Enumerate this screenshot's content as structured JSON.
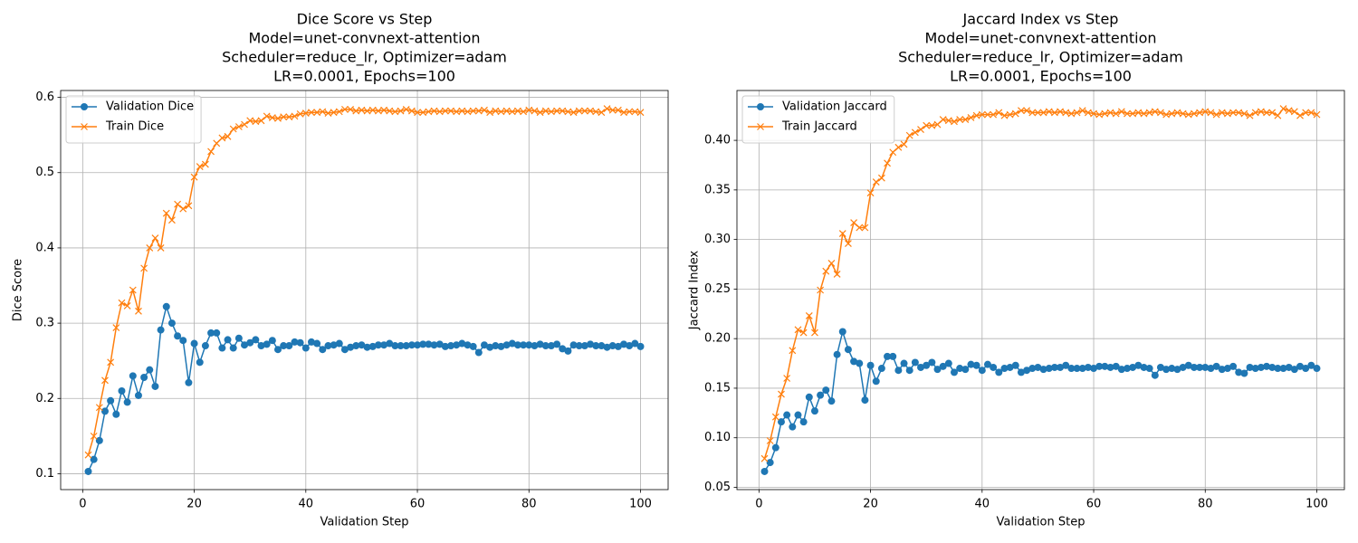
{
  "chart_data": [
    {
      "type": "line",
      "title": [
        "Dice Score vs Step",
        "Model=unet-convnext-attention",
        "Scheduler=reduce_lr, Optimizer=adam",
        "LR=0.0001, Epochs=100"
      ],
      "x_label": "Validation Step",
      "y_label": "Dice Score",
      "x": [
        1,
        2,
        3,
        4,
        5,
        6,
        7,
        8,
        9,
        10,
        11,
        12,
        13,
        14,
        15,
        16,
        17,
        18,
        19,
        20,
        21,
        22,
        23,
        24,
        25,
        26,
        27,
        28,
        29,
        30,
        31,
        32,
        33,
        34,
        35,
        36,
        37,
        38,
        39,
        40,
        41,
        42,
        43,
        44,
        45,
        46,
        47,
        48,
        49,
        50,
        51,
        52,
        53,
        54,
        55,
        56,
        57,
        58,
        59,
        60,
        61,
        62,
        63,
        64,
        65,
        66,
        67,
        68,
        69,
        70,
        71,
        72,
        73,
        74,
        75,
        76,
        77,
        78,
        79,
        80,
        81,
        82,
        83,
        84,
        85,
        86,
        87,
        88,
        89,
        90,
        91,
        92,
        93,
        94,
        95,
        96,
        97,
        98,
        99,
        100
      ],
      "series": [
        {
          "name": "Validation Dice",
          "color": "#1f77b4",
          "marker": "o",
          "values": [
            0.103,
            0.119,
            0.144,
            0.183,
            0.197,
            0.179,
            0.21,
            0.195,
            0.23,
            0.204,
            0.228,
            0.238,
            0.216,
            0.291,
            0.322,
            0.3,
            0.283,
            0.277,
            0.221,
            0.273,
            0.248,
            0.27,
            0.287,
            0.287,
            0.267,
            0.278,
            0.267,
            0.28,
            0.271,
            0.274,
            0.278,
            0.27,
            0.272,
            0.277,
            0.265,
            0.27,
            0.27,
            0.275,
            0.274,
            0.267,
            0.275,
            0.273,
            0.265,
            0.27,
            0.271,
            0.273,
            0.265,
            0.268,
            0.27,
            0.271,
            0.268,
            0.269,
            0.271,
            0.271,
            0.273,
            0.27,
            0.27,
            0.27,
            0.271,
            0.271,
            0.272,
            0.272,
            0.271,
            0.272,
            0.269,
            0.27,
            0.271,
            0.273,
            0.271,
            0.269,
            0.261,
            0.271,
            0.268,
            0.27,
            0.269,
            0.271,
            0.273,
            0.271,
            0.271,
            0.271,
            0.27,
            0.272,
            0.27,
            0.27,
            0.272,
            0.266,
            0.263,
            0.271,
            0.27,
            0.27,
            0.272,
            0.27,
            0.27,
            0.268,
            0.27,
            0.269,
            0.272,
            0.27,
            0.273,
            0.269
          ]
        },
        {
          "name": "Train Dice",
          "color": "#ff7f0e",
          "marker": "x",
          "values": [
            0.125,
            0.15,
            0.188,
            0.224,
            0.248,
            0.294,
            0.327,
            0.323,
            0.344,
            0.316,
            0.373,
            0.4,
            0.413,
            0.4,
            0.446,
            0.437,
            0.458,
            0.452,
            0.456,
            0.494,
            0.508,
            0.511,
            0.528,
            0.539,
            0.546,
            0.548,
            0.558,
            0.561,
            0.564,
            0.569,
            0.568,
            0.569,
            0.575,
            0.573,
            0.572,
            0.574,
            0.574,
            0.575,
            0.578,
            0.579,
            0.58,
            0.58,
            0.581,
            0.579,
            0.58,
            0.581,
            0.584,
            0.584,
            0.582,
            0.583,
            0.582,
            0.583,
            0.582,
            0.583,
            0.582,
            0.581,
            0.582,
            0.584,
            0.582,
            0.58,
            0.58,
            0.581,
            0.582,
            0.581,
            0.582,
            0.582,
            0.581,
            0.582,
            0.581,
            0.582,
            0.582,
            0.583,
            0.58,
            0.582,
            0.581,
            0.582,
            0.581,
            0.582,
            0.581,
            0.583,
            0.582,
            0.58,
            0.582,
            0.581,
            0.582,
            0.582,
            0.581,
            0.58,
            0.582,
            0.582,
            0.582,
            0.581,
            0.58,
            0.585,
            0.583,
            0.583,
            0.58,
            0.581,
            0.581,
            0.58
          ]
        }
      ],
      "xlim": [
        -3.95,
        104.95
      ],
      "xticks": [
        0,
        20,
        40,
        60,
        80,
        100
      ],
      "ylim": [
        0.0789,
        0.6091
      ],
      "yticks": [
        0.1,
        0.2,
        0.3,
        0.4,
        0.5,
        0.6
      ],
      "grid": true,
      "legend": "upper left"
    },
    {
      "type": "line",
      "title": [
        "Jaccard Index vs Step",
        "Model=unet-convnext-attention",
        "Scheduler=reduce_lr, Optimizer=adam",
        "LR=0.0001, Epochs=100"
      ],
      "x_label": "Validation Step",
      "y_label": "Jaccard Index",
      "x": [
        1,
        2,
        3,
        4,
        5,
        6,
        7,
        8,
        9,
        10,
        11,
        12,
        13,
        14,
        15,
        16,
        17,
        18,
        19,
        20,
        21,
        22,
        23,
        24,
        25,
        26,
        27,
        28,
        29,
        30,
        31,
        32,
        33,
        34,
        35,
        36,
        37,
        38,
        39,
        40,
        41,
        42,
        43,
        44,
        45,
        46,
        47,
        48,
        49,
        50,
        51,
        52,
        53,
        54,
        55,
        56,
        57,
        58,
        59,
        60,
        61,
        62,
        63,
        64,
        65,
        66,
        67,
        68,
        69,
        70,
        71,
        72,
        73,
        74,
        75,
        76,
        77,
        78,
        79,
        80,
        81,
        82,
        83,
        84,
        85,
        86,
        87,
        88,
        89,
        90,
        91,
        92,
        93,
        94,
        95,
        96,
        97,
        98,
        99,
        100
      ],
      "series": [
        {
          "name": "Validation Jaccard",
          "color": "#1f77b4",
          "marker": "o",
          "values": [
            0.066,
            0.075,
            0.09,
            0.116,
            0.123,
            0.111,
            0.123,
            0.116,
            0.141,
            0.127,
            0.143,
            0.148,
            0.137,
            0.184,
            0.207,
            0.189,
            0.177,
            0.175,
            0.138,
            0.173,
            0.157,
            0.17,
            0.182,
            0.182,
            0.168,
            0.175,
            0.168,
            0.176,
            0.171,
            0.173,
            0.176,
            0.169,
            0.172,
            0.175,
            0.166,
            0.17,
            0.169,
            0.174,
            0.173,
            0.168,
            0.174,
            0.171,
            0.166,
            0.17,
            0.171,
            0.173,
            0.166,
            0.168,
            0.17,
            0.171,
            0.169,
            0.17,
            0.171,
            0.171,
            0.173,
            0.17,
            0.17,
            0.17,
            0.171,
            0.17,
            0.172,
            0.172,
            0.171,
            0.172,
            0.169,
            0.17,
            0.171,
            0.173,
            0.171,
            0.17,
            0.163,
            0.171,
            0.169,
            0.17,
            0.169,
            0.171,
            0.173,
            0.171,
            0.171,
            0.171,
            0.17,
            0.172,
            0.169,
            0.17,
            0.172,
            0.166,
            0.165,
            0.171,
            0.17,
            0.171,
            0.172,
            0.171,
            0.17,
            0.17,
            0.171,
            0.169,
            0.172,
            0.17,
            0.173,
            0.17
          ]
        },
        {
          "name": "Train Jaccard",
          "color": "#ff7f0e",
          "marker": "x",
          "values": [
            0.079,
            0.097,
            0.121,
            0.144,
            0.16,
            0.188,
            0.209,
            0.206,
            0.223,
            0.206,
            0.249,
            0.268,
            0.276,
            0.265,
            0.306,
            0.296,
            0.317,
            0.312,
            0.312,
            0.347,
            0.358,
            0.362,
            0.377,
            0.388,
            0.393,
            0.396,
            0.405,
            0.408,
            0.411,
            0.415,
            0.415,
            0.416,
            0.421,
            0.42,
            0.419,
            0.421,
            0.421,
            0.423,
            0.425,
            0.426,
            0.426,
            0.426,
            0.428,
            0.425,
            0.426,
            0.427,
            0.43,
            0.43,
            0.428,
            0.428,
            0.428,
            0.429,
            0.428,
            0.429,
            0.428,
            0.427,
            0.428,
            0.43,
            0.428,
            0.427,
            0.426,
            0.427,
            0.428,
            0.427,
            0.429,
            0.427,
            0.427,
            0.428,
            0.427,
            0.428,
            0.429,
            0.428,
            0.426,
            0.427,
            0.428,
            0.427,
            0.426,
            0.427,
            0.428,
            0.429,
            0.428,
            0.426,
            0.428,
            0.427,
            0.428,
            0.428,
            0.427,
            0.425,
            0.428,
            0.429,
            0.428,
            0.428,
            0.425,
            0.432,
            0.43,
            0.429,
            0.425,
            0.428,
            0.428,
            0.426
          ]
        }
      ],
      "xlim": [
        -3.95,
        104.95
      ],
      "xticks": [
        0,
        20,
        40,
        60,
        80,
        100
      ],
      "ylim": [
        0.0477,
        0.4503
      ],
      "yticks": [
        0.05,
        {
          "value": 0.1,
          "label": "0.10"
        },
        0.15,
        {
          "value": 0.2,
          "label": "0.20"
        },
        0.25,
        {
          "value": 0.3,
          "label": "0.30"
        },
        0.35,
        {
          "value": 0.4,
          "label": "0.40"
        }
      ],
      "grid": true,
      "legend": "upper left"
    }
  ]
}
